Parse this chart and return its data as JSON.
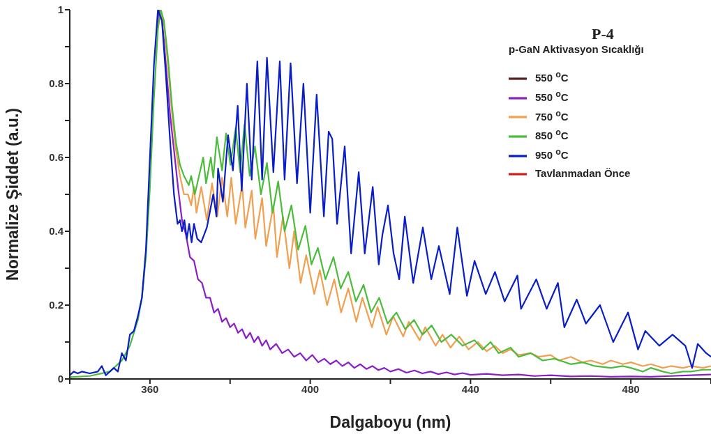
{
  "chart_data": {
    "type": "line",
    "title": "P-4",
    "legend_title": "p-GaN Aktivasyon Sıcaklığı",
    "xlabel": "Dalgaboyu (nm)",
    "ylabel": "Normalize Şiddet (a.u.)",
    "xlim": [
      340,
      500
    ],
    "xticks": [
      {
        "value": 340,
        "label": null
      },
      360,
      {
        "value": 380,
        "label": null
      },
      400,
      {
        "value": 420,
        "label": null
      },
      440,
      {
        "value": 460,
        "label": null
      },
      480,
      {
        "value": 500,
        "label": null
      }
    ],
    "ylim": [
      0,
      1
    ],
    "yticks": [
      0,
      {
        "value": 0.1,
        "label": null
      },
      0.2,
      {
        "value": 0.3,
        "label": null
      },
      0.4,
      {
        "value": 0.5,
        "label": null
      },
      0.6,
      {
        "value": 0.7,
        "label": null
      },
      0.8,
      {
        "value": 0.9,
        "label": null
      },
      1
    ],
    "grid": false,
    "legend": "top right",
    "marker": "none",
    "line_style": "solid",
    "series": [
      {
        "name": "550 $^{o}$C",
        "color": "#5a1e1e"
      },
      {
        "name": "550 $^{o}$C",
        "color": "#8a1fc8",
        "x": [
          361.8,
          362.4,
          363,
          364,
          365,
          366,
          367,
          368,
          369,
          370,
          371,
          372,
          373,
          374,
          375,
          376,
          377,
          378,
          379,
          380,
          381,
          382,
          383,
          384,
          385,
          386,
          387,
          388,
          389,
          390,
          391.5,
          393,
          394.5,
          396,
          397.5,
          399,
          400.5,
          402,
          403.5,
          405,
          406.5,
          408,
          409.5,
          411,
          412.5,
          414,
          415.5,
          417,
          418.5,
          420,
          422,
          424,
          426,
          428,
          430,
          432,
          434,
          436,
          438,
          440,
          444,
          448,
          452,
          456,
          460,
          465,
          470,
          475,
          480,
          485,
          490,
          495,
          500
        ],
        "values": [
          0.95,
          1.0,
          0.98,
          0.85,
          0.72,
          0.62,
          0.52,
          0.43,
          0.39,
          0.33,
          0.32,
          0.27,
          0.26,
          0.22,
          0.22,
          0.18,
          0.19,
          0.155,
          0.165,
          0.14,
          0.15,
          0.125,
          0.135,
          0.11,
          0.125,
          0.1,
          0.115,
          0.09,
          0.105,
          0.08,
          0.095,
          0.07,
          0.08,
          0.06,
          0.07,
          0.05,
          0.065,
          0.045,
          0.055,
          0.04,
          0.05,
          0.035,
          0.045,
          0.03,
          0.04,
          0.027,
          0.035,
          0.024,
          0.03,
          0.02,
          0.027,
          0.017,
          0.023,
          0.015,
          0.02,
          0.013,
          0.018,
          0.012,
          0.016,
          0.011,
          0.014,
          0.01,
          0.012,
          0.008,
          0.01,
          0.007,
          0.008,
          0.006,
          0.007,
          0.006,
          0.008,
          0.01,
          0.012
        ]
      },
      {
        "name": "750 $^{o}$C",
        "color": "#f0a050",
        "x": [
          362,
          362.7,
          363.5,
          364.5,
          365.5,
          366.5,
          367.5,
          368.5,
          369.5,
          370.3,
          371,
          371.6,
          372.8,
          374.2,
          375.5,
          376.8,
          378,
          379.3,
          380.3,
          381.4,
          383,
          383.8,
          385.4,
          386.3,
          388,
          389,
          390.8,
          391.7,
          393.2,
          394.8,
          396,
          397.6,
          399,
          401,
          402.4,
          404.2,
          406,
          407.7,
          409.5,
          411.5,
          413,
          415.4,
          416.8,
          419,
          420.7,
          423.2,
          424.6,
          427.3,
          428.7,
          431.3,
          433,
          435,
          437.2,
          439.5,
          441.8,
          444,
          446,
          448,
          450,
          452,
          455,
          457,
          460,
          462,
          465,
          468,
          470,
          473,
          475,
          478,
          480,
          483,
          485,
          488,
          490,
          493,
          495,
          498,
          500
        ],
        "values": [
          0.95,
          1.0,
          0.96,
          0.85,
          0.72,
          0.62,
          0.55,
          0.5,
          0.5,
          0.47,
          0.52,
          0.45,
          0.52,
          0.43,
          0.53,
          0.44,
          0.545,
          0.44,
          0.545,
          0.42,
          0.525,
          0.41,
          0.51,
          0.38,
          0.49,
          0.36,
          0.47,
          0.33,
          0.44,
          0.3,
          0.4,
          0.26,
          0.335,
          0.23,
          0.295,
          0.2,
          0.27,
          0.18,
          0.245,
          0.155,
          0.22,
          0.14,
          0.195,
          0.12,
          0.17,
          0.115,
          0.155,
          0.105,
          0.14,
          0.09,
          0.12,
          0.085,
          0.115,
          0.08,
          0.1,
          0.075,
          0.09,
          0.07,
          0.08,
          0.065,
          0.07,
          0.06,
          0.065,
          0.05,
          0.06,
          0.045,
          0.05,
          0.04,
          0.05,
          0.04,
          0.045,
          0.035,
          0.04,
          0.03,
          0.035,
          0.03,
          0.035,
          0.03,
          0.035
        ]
      },
      {
        "name": "850 $^{o}$C",
        "color": "#4cbc3c",
        "x": [
          340,
          345,
          350,
          353,
          355,
          357,
          358,
          359,
          360,
          361,
          362,
          362.7,
          363.5,
          364.5,
          365.5,
          366.5,
          367.5,
          368.5,
          369.7,
          370.3,
          371.2,
          373.3,
          374,
          375.2,
          375.8,
          376.7,
          378,
          379,
          380.1,
          381.4,
          382.5,
          383.6,
          384.9,
          386.2,
          387.7,
          389.2,
          390.6,
          392,
          393.6,
          395.3,
          397,
          398.8,
          400.3,
          401.9,
          403.8,
          405.8,
          407.6,
          409.5,
          411.4,
          413.3,
          415.2,
          417.2,
          419.3,
          421.5,
          423.7,
          425.9,
          428,
          430.3,
          432.7,
          435.2,
          438,
          441,
          443,
          445,
          447,
          450,
          452,
          455,
          458,
          461,
          465,
          468,
          471,
          475,
          478,
          480,
          483,
          485,
          488,
          490,
          493,
          495,
          498,
          500
        ],
        "values": [
          0.005,
          0.008,
          0.02,
          0.05,
          0.09,
          0.16,
          0.22,
          0.33,
          0.52,
          0.76,
          0.95,
          1.0,
          0.97,
          0.87,
          0.74,
          0.64,
          0.58,
          0.55,
          0.525,
          0.55,
          0.5,
          0.6,
          0.53,
          0.6,
          0.545,
          0.655,
          0.565,
          0.665,
          0.58,
          0.68,
          0.56,
          0.69,
          0.55,
          0.63,
          0.5,
          0.585,
          0.45,
          0.535,
          0.4,
          0.47,
          0.35,
          0.415,
          0.31,
          0.355,
          0.27,
          0.33,
          0.245,
          0.29,
          0.21,
          0.255,
          0.18,
          0.22,
          0.15,
          0.18,
          0.135,
          0.16,
          0.12,
          0.145,
          0.1,
          0.12,
          0.09,
          0.105,
          0.08,
          0.1,
          0.07,
          0.085,
          0.06,
          0.07,
          0.05,
          0.055,
          0.04,
          0.045,
          0.035,
          0.03,
          0.035,
          0.03,
          0.02,
          0.03,
          0.02,
          0.015,
          0.02,
          0.02,
          0.025,
          0.025
        ]
      },
      {
        "name": "950 $^{o}$C",
        "color": "#0a1ec8",
        "x": [
          340,
          341,
          342,
          343,
          345,
          347,
          348,
          349,
          351,
          352,
          353,
          354,
          355,
          356,
          357,
          358,
          359,
          360,
          361,
          362,
          363,
          364,
          365,
          366,
          366.9,
          367.5,
          368,
          368.6,
          369.2,
          369.8,
          370.4,
          371,
          371.8,
          372.8,
          374.2,
          375.8,
          376.6,
          377,
          378.2,
          379.5,
          380.7,
          381.9,
          382.9,
          384.2,
          385.4,
          386.8,
          388,
          389.2,
          390.8,
          392.4,
          393.6,
          395.1,
          396.7,
          398.3,
          400,
          401.6,
          403.4,
          404.6,
          405.5,
          406.7,
          408.6,
          410.2,
          412.1,
          413.6,
          415.6,
          417.1,
          418,
          419.4,
          420.8,
          422.2,
          423.6,
          425.7,
          428.1,
          430.2,
          432.1,
          434.8,
          436.7,
          439.1,
          441,
          443.8,
          446.1,
          448.5,
          451.7,
          452.6,
          456.4,
          459,
          461.8,
          463.4,
          466.5,
          468.8,
          472.3,
          475.6,
          479.3,
          481.8,
          483.6,
          487.1,
          490.4,
          493.6,
          495.3,
          496.7,
          498.8,
          500
        ],
        "values": [
          0.01,
          0.02,
          0.015,
          0.02,
          0.015,
          0.02,
          0.035,
          0.01,
          0.03,
          0.02,
          0.07,
          0.05,
          0.12,
          0.13,
          0.17,
          0.22,
          0.35,
          0.6,
          0.85,
          1.0,
          0.97,
          0.82,
          0.65,
          0.5,
          0.42,
          0.43,
          0.4,
          0.43,
          0.38,
          0.42,
          0.37,
          0.42,
          0.38,
          0.37,
          0.41,
          0.5,
          0.44,
          0.57,
          0.48,
          0.66,
          0.565,
          0.74,
          0.51,
          0.8,
          0.54,
          0.86,
          0.54,
          0.87,
          0.56,
          0.86,
          0.54,
          0.855,
          0.53,
          0.8,
          0.45,
          0.77,
          0.44,
          0.67,
          0.65,
          0.42,
          0.63,
          0.34,
          0.56,
          0.34,
          0.52,
          0.31,
          0.39,
          0.47,
          0.34,
          0.27,
          0.44,
          0.26,
          0.41,
          0.27,
          0.36,
          0.23,
          0.41,
          0.225,
          0.32,
          0.23,
          0.29,
          0.21,
          0.28,
          0.19,
          0.27,
          0.19,
          0.26,
          0.14,
          0.215,
          0.15,
          0.2,
          0.1,
          0.18,
          0.08,
          0.13,
          0.09,
          0.12,
          0.09,
          0.03,
          0.095,
          0.07,
          0.06
        ]
      },
      {
        "name": "Tavlanmadan Önce",
        "color": "#d0201e"
      }
    ]
  }
}
